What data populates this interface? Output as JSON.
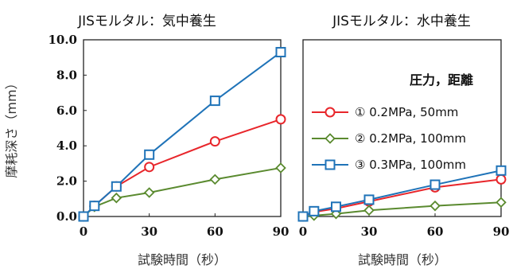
{
  "chart_data": [
    {
      "type": "line",
      "title": "JISモルタル：気中養生",
      "xlabel": "試験時間（秒）",
      "ylabel": "摩耗深さ（mm）",
      "x_ticks": [
        "0",
        "30",
        "60",
        "90"
      ],
      "y_ticks": [
        "0.0",
        "2.0",
        "4.0",
        "6.0",
        "8.0",
        "10.0"
      ],
      "xlim": [
        0,
        90
      ],
      "ylim": [
        0,
        10
      ],
      "grid": false,
      "series": [
        {
          "name": "① 0.2MPa, 50mm",
          "color": "#e8262b",
          "marker": "circle",
          "x": [
            0,
            5,
            15,
            30,
            60,
            90
          ],
          "y": [
            0.0,
            0.6,
            1.7,
            2.8,
            4.25,
            5.5
          ]
        },
        {
          "name": "② 0.2MPa, 100mm",
          "color": "#5a8a2f",
          "marker": "diamond",
          "x": [
            0,
            5,
            15,
            30,
            60,
            90
          ],
          "y": [
            0.0,
            0.55,
            1.05,
            1.35,
            2.1,
            2.75
          ]
        },
        {
          "name": "③ 0.3MPa, 100mm",
          "color": "#1f73b8",
          "marker": "square",
          "x": [
            0,
            5,
            15,
            30,
            60,
            90
          ],
          "y": [
            0.0,
            0.6,
            1.7,
            3.5,
            6.55,
            9.3
          ]
        }
      ]
    },
    {
      "type": "line",
      "title": "JISモルタル：水中養生",
      "xlabel": "試験時間（秒）",
      "x_ticks": [
        "0",
        "30",
        "60",
        "90"
      ],
      "xlim": [
        0,
        90
      ],
      "ylim": [
        0,
        10
      ],
      "grid": false,
      "legend": {
        "title": "圧力，距離",
        "placement": "upper-right",
        "entries": [
          "① 0.2MPa, 50mm",
          "② 0.2MPa, 100mm",
          "③ 0.3MPa, 100mm"
        ]
      },
      "series": [
        {
          "name": "① 0.2MPa, 50mm",
          "color": "#e8262b",
          "marker": "circle",
          "x": [
            0,
            5,
            15,
            30,
            60,
            90
          ],
          "y": [
            0.0,
            0.25,
            0.45,
            0.85,
            1.65,
            2.1
          ]
        },
        {
          "name": "② 0.2MPa, 100mm",
          "color": "#5a8a2f",
          "marker": "diamond",
          "x": [
            0,
            5,
            15,
            30,
            60,
            90
          ],
          "y": [
            0.0,
            0.05,
            0.15,
            0.35,
            0.6,
            0.8
          ]
        },
        {
          "name": "③ 0.3MPa, 100mm",
          "color": "#1f73b8",
          "marker": "square",
          "x": [
            0,
            5,
            15,
            30,
            60,
            90
          ],
          "y": [
            0.0,
            0.3,
            0.55,
            0.95,
            1.8,
            2.6
          ]
        }
      ]
    }
  ]
}
